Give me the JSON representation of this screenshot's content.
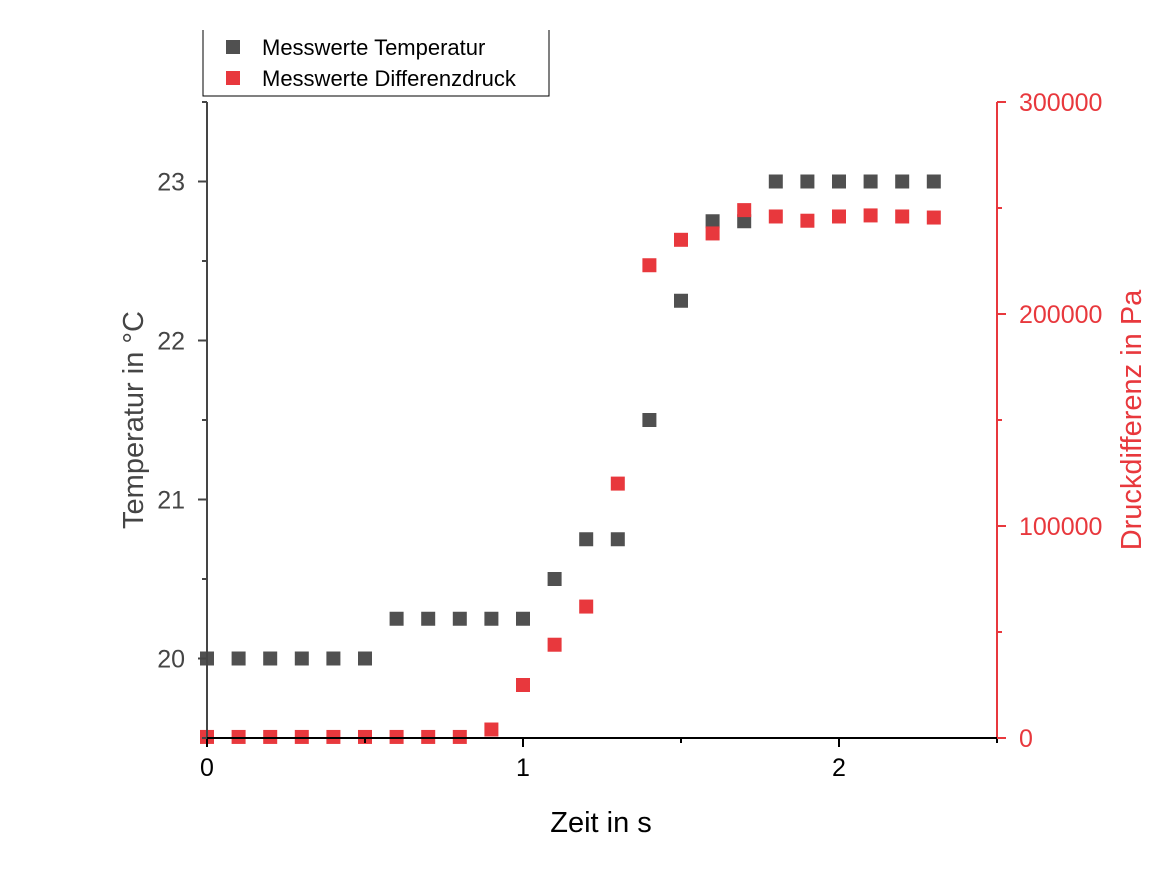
{
  "chart_data": {
    "type": "scatter",
    "xlabel": "Zeit in s",
    "ylabel_left": "Temperatur in °C",
    "ylabel_right": "Druckdifferenz in Pa",
    "xlim": [
      0,
      2.5
    ],
    "ylim_left": [
      19.5,
      23.5
    ],
    "ylim_right": [
      0,
      300000
    ],
    "x_ticks": [
      "0",
      "1",
      "2"
    ],
    "y_left_ticks": [
      "20",
      "21",
      "22",
      "23"
    ],
    "y_right_ticks": [
      "0",
      "100000",
      "200000",
      "300000"
    ],
    "grid": false,
    "legend": "top-left",
    "colors": {
      "temperature": "#505050",
      "pressure": "#e8383d",
      "left_axis": "#454545",
      "right_axis": "#e8383d"
    },
    "series": [
      {
        "name": "Messwerte Temperatur",
        "axis": "left",
        "x": [
          0,
          0.1,
          0.2,
          0.3,
          0.4,
          0.5,
          0.6,
          0.7,
          0.8,
          0.9,
          1.0,
          1.1,
          1.2,
          1.3,
          1.4,
          1.5,
          1.6,
          1.7,
          1.8,
          1.9,
          2.0,
          2.1,
          2.2,
          2.3
        ],
        "y": [
          20,
          20,
          20,
          20,
          20,
          20,
          20.25,
          20.25,
          20.25,
          20.25,
          20.25,
          20.5,
          20.75,
          20.75,
          21.5,
          22.25,
          22.75,
          22.75,
          23,
          23,
          23,
          23,
          23,
          23
        ]
      },
      {
        "name": "Messwerte Differenzdruck",
        "axis": "right",
        "x": [
          0,
          0.1,
          0.2,
          0.3,
          0.4,
          0.5,
          0.6,
          0.7,
          0.8,
          0.9,
          1.0,
          1.1,
          1.2,
          1.3,
          1.4,
          1.5,
          1.6,
          1.7,
          1.8,
          1.9,
          2.0,
          2.1,
          2.2,
          2.3
        ],
        "y": [
          500,
          500,
          500,
          500,
          500,
          500,
          500,
          500,
          500,
          4000,
          25000,
          44000,
          62000,
          120000,
          223000,
          235000,
          238000,
          249000,
          246000,
          244000,
          246000,
          246500,
          246000,
          245500
        ]
      }
    ]
  }
}
